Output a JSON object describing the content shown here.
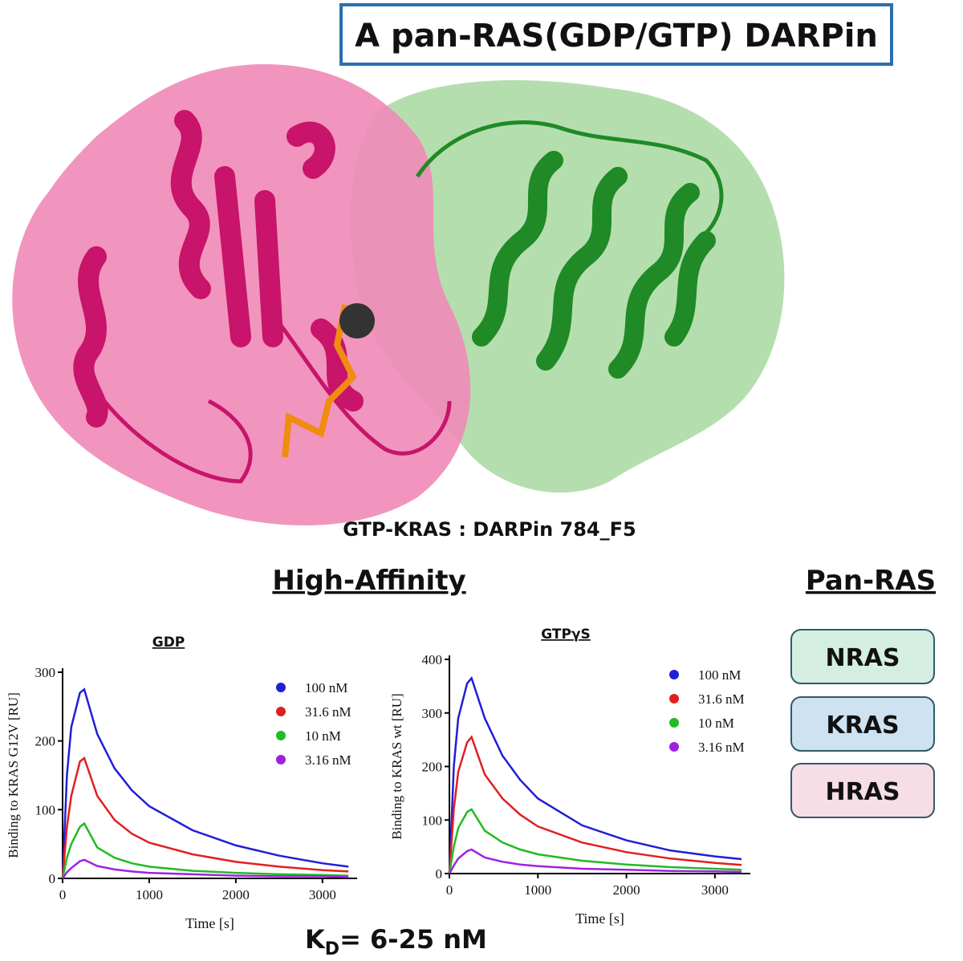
{
  "header": {
    "title": "A pan-RAS(GDP/GTP) DARPin"
  },
  "structure": {
    "caption": "GTP-KRAS : DARPin 784_F5"
  },
  "sections": {
    "left": "High-Affinity",
    "right": "Pan-RAS"
  },
  "ras_list": [
    "NRAS",
    "KRAS",
    "HRAS"
  ],
  "kd": {
    "main": "K",
    "sub": "D",
    "rest": "= 6-25 nM"
  },
  "chart_data": [
    {
      "type": "line",
      "title": "GDP",
      "x_label": "Time [s]",
      "y_label": "Binding to KRAS G12V [RU]",
      "x": [
        0,
        50,
        100,
        200,
        250,
        400,
        600,
        800,
        1000,
        1500,
        2000,
        2500,
        3000,
        3300
      ],
      "xlim": [
        0,
        3400
      ],
      "xticks": [
        0,
        1000,
        2000,
        3000
      ],
      "ylim": [
        0,
        300
      ],
      "yticks": [
        0,
        100,
        200,
        300
      ],
      "series": [
        {
          "name": "100 nM",
          "color": "#1f1fd6",
          "values": [
            0,
            150,
            220,
            270,
            275,
            210,
            160,
            128,
            105,
            70,
            48,
            33,
            22,
            17
          ]
        },
        {
          "name": "31.6 nM",
          "color": "#e02020",
          "values": [
            0,
            75,
            120,
            170,
            175,
            120,
            85,
            65,
            52,
            35,
            24,
            17,
            12,
            10
          ]
        },
        {
          "name": "10 nM",
          "color": "#22bb22",
          "values": [
            0,
            30,
            50,
            75,
            80,
            45,
            30,
            22,
            17,
            11,
            8,
            6,
            5,
            4
          ]
        },
        {
          "name": "3.16 nM",
          "color": "#a020e0",
          "values": [
            0,
            9,
            15,
            25,
            27,
            18,
            13,
            10,
            8,
            6,
            4,
            3,
            3,
            2
          ]
        }
      ]
    },
    {
      "type": "line",
      "title": "GTPγS",
      "x_label": "Time [s]",
      "y_label": "Binding to KRAS wt [RU]",
      "x": [
        0,
        50,
        100,
        200,
        250,
        400,
        600,
        800,
        1000,
        1500,
        2000,
        2500,
        3000,
        3300
      ],
      "xlim": [
        0,
        3400
      ],
      "xticks": [
        0,
        1000,
        2000,
        3000
      ],
      "ylim": [
        0,
        400
      ],
      "yticks": [
        0,
        100,
        200,
        300,
        400
      ],
      "series": [
        {
          "name": "100 nM",
          "color": "#1f1fd6",
          "values": [
            0,
            200,
            290,
            355,
            365,
            290,
            220,
            175,
            140,
            90,
            62,
            43,
            32,
            27
          ]
        },
        {
          "name": "31.6 nM",
          "color": "#e02020",
          "values": [
            0,
            120,
            190,
            245,
            255,
            185,
            140,
            110,
            88,
            58,
            40,
            28,
            20,
            16
          ]
        },
        {
          "name": "10 nM",
          "color": "#22bb22",
          "values": [
            0,
            50,
            85,
            115,
            120,
            80,
            58,
            45,
            36,
            24,
            17,
            12,
            9,
            7
          ]
        },
        {
          "name": "3.16 nM",
          "color": "#a020e0",
          "values": [
            0,
            15,
            28,
            42,
            45,
            30,
            22,
            17,
            14,
            9,
            7,
            5,
            4,
            3
          ]
        }
      ]
    }
  ]
}
